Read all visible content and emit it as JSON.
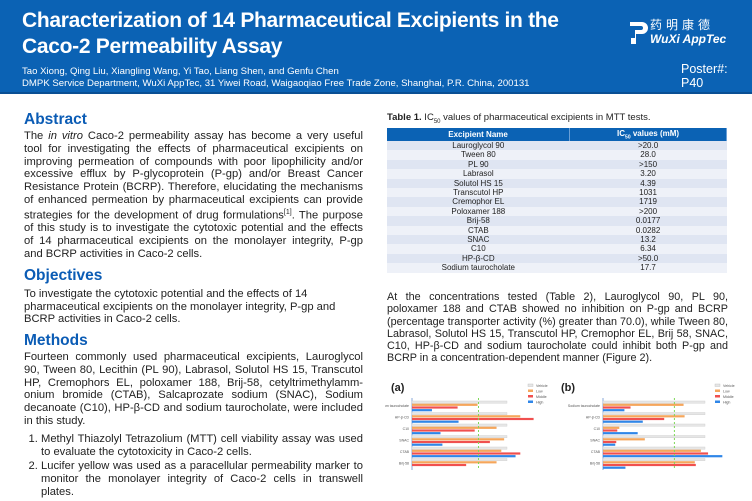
{
  "header": {
    "title": "Characterization of 14 Pharmaceutical Excipients in the Caco-2 Permeability Assay",
    "authors": "Tao Xiong, Qing Liu, Xiangling Wang, Yi Tao, Liang Shen, and Genfu Chen",
    "affiliation": "DMPK Service Department, WuXi AppTec, 31 Yiwei Road, Waigaoqiao Free Trade Zone, Shanghai, P.R. China, 200131",
    "logo_cn": "药明康德",
    "logo_en": "WuXi AppTec",
    "poster_number": "Poster#: P40",
    "color": "#0b62b4"
  },
  "abstract": {
    "heading": "Abstract",
    "pre": "The ",
    "italic": "in vitro",
    "text": " Caco-2 permeability assay has become a very useful tool for investigating the effects of pharmaceutical excipients on improving permeation of compounds with poor lipophilicity and/or excessive efflux by P-glycoprotein (P-gp) and/or Breast Cancer Resistance Protein (BCRP). Therefore, elucidating the mechanisms of enhanced permeation by pharmaceutical excipients can provide strategies for the development of drug formulations",
    "ref": "[1]",
    "text2": ". The purpose of this study is to investigate the cytotoxic potential and the effects of 14 pharmaceutical excipients on the monolayer integrity, P-gp and BCRP activities in Caco-2 cells."
  },
  "objectives": {
    "heading": "Objectives",
    "text": "To investigate the cytotoxic potential and the effects of 14 pharmaceutical excipients on the monolayer integrity, P-gp and BCRP activities in Caco-2 cells."
  },
  "methods": {
    "heading": "Methods",
    "text": "Fourteen commonly used pharmaceutical excipients, Lauroglycol 90, Tween 80, Lecithin (PL 90), Labrasol, Solutol HS 15, Transcutol HP, Cremophors EL, poloxamer 188, Brij-58, cetyltrimethylamm-onium bromide (CTAB), Salcaprozate sodium (SNAC), Sodium decanoate (C10), HP-β-CD and sodium taurocholate, were included in this study.",
    "items": [
      "Methyl Thiazolyl Tetrazolium (MTT) cell viability assay was used to evaluate the cytotoxicity in Caco-2 cells.",
      "Lucifer yellow was used as a paracellular permeability marker to monitor the monolayer integrity of Caco-2 cells in transwell plates."
    ]
  },
  "table1": {
    "caption_bold": "Table 1.",
    "caption_pre": " IC",
    "caption_sub": "50",
    "caption_post": " values of pharmaceutical excipients in MTT tests.",
    "col1": "Excipient Name",
    "col2_pre": "IC",
    "col2_sub": "50",
    "col2_post": " values (mM)",
    "rows": [
      [
        "Lauroglycol 90",
        ">20.0"
      ],
      [
        "Tween 80",
        "28.0"
      ],
      [
        "PL 90",
        ">150"
      ],
      [
        "Labrasol",
        "3.20"
      ],
      [
        "Solutol HS 15",
        "4.39"
      ],
      [
        "Transcutol HP",
        "1031"
      ],
      [
        "Cremophor EL",
        "1719"
      ],
      [
        "Poloxamer 188",
        ">200"
      ],
      [
        "Brij-58",
        "0.0177"
      ],
      [
        "CTAB",
        "0.0282"
      ],
      [
        "SNAC",
        "13.2"
      ],
      [
        "C10",
        "6.34"
      ],
      [
        "HP-β-CD",
        ">50.0"
      ],
      [
        "Sodium taurocholate",
        "17.7"
      ]
    ]
  },
  "results_text": "At the concentrations tested (Table 2), Lauroglycol 90, PL 90, poloxamer 188 and CTAB showed no inhibition on P-gp and BCRP (percentage transporter activity (%) greater than 70.0), while Tween 80, Labrasol, Solutol HS 15, Transcutol HP, Cremophor EL, Brij 58, SNAC, C10, HP-β-CD and sodium taurocholate could inhibit both P-gp and BCRP in a concentration-dependent manner (Figure 2).",
  "chart_data": [
    {
      "type": "bar",
      "orientation": "horizontal",
      "panel": "(a)",
      "categories": [
        "Sodium taurocholate",
        "HP-β-CD",
        "C10",
        "SNAC",
        "CTAB",
        "Brij-58"
      ],
      "legend": [
        "Vehicle",
        "Low",
        "Middle",
        "High"
      ],
      "legend_position": "top-right",
      "threshold": 70,
      "series": [
        {
          "name": "Vehicle",
          "values": [
            100,
            100,
            100,
            100,
            100,
            100
          ]
        },
        {
          "name": "Low",
          "values": [
            69,
            114,
            89,
            97,
            94,
            89
          ]
        },
        {
          "name": "Middle",
          "values": [
            48,
            128,
            66,
            82,
            114,
            57
          ]
        },
        {
          "name": "High",
          "values": [
            21,
            49,
            30,
            32,
            109,
            null
          ]
        }
      ]
    },
    {
      "type": "bar",
      "orientation": "horizontal",
      "panel": "(b)",
      "categories": [
        "Sodium taurocholate",
        "HP-β-CD",
        "C10",
        "SNAC",
        "CTAB",
        "Brij-58"
      ],
      "legend": [
        "Vehicle",
        "Low",
        "Middle",
        "High"
      ],
      "legend_position": "top-right",
      "threshold": 70,
      "series": [
        {
          "name": "Vehicle",
          "values": [
            100,
            100,
            100,
            100,
            100,
            100
          ]
        },
        {
          "name": "Low",
          "values": [
            79,
            80,
            16,
            41,
            96,
            90
          ]
        },
        {
          "name": "Middle",
          "values": [
            27,
            60,
            14,
            13,
            103,
            91
          ]
        },
        {
          "name": "High",
          "values": [
            21,
            39,
            34,
            12,
            117,
            22
          ]
        }
      ]
    }
  ],
  "colors": {
    "heading": "#0b5cb5",
    "vehicle": "#e6e6e6",
    "low": "#f5a65b",
    "middle": "#f0504f",
    "high": "#2f86e8",
    "threshold": "#7ed957"
  }
}
